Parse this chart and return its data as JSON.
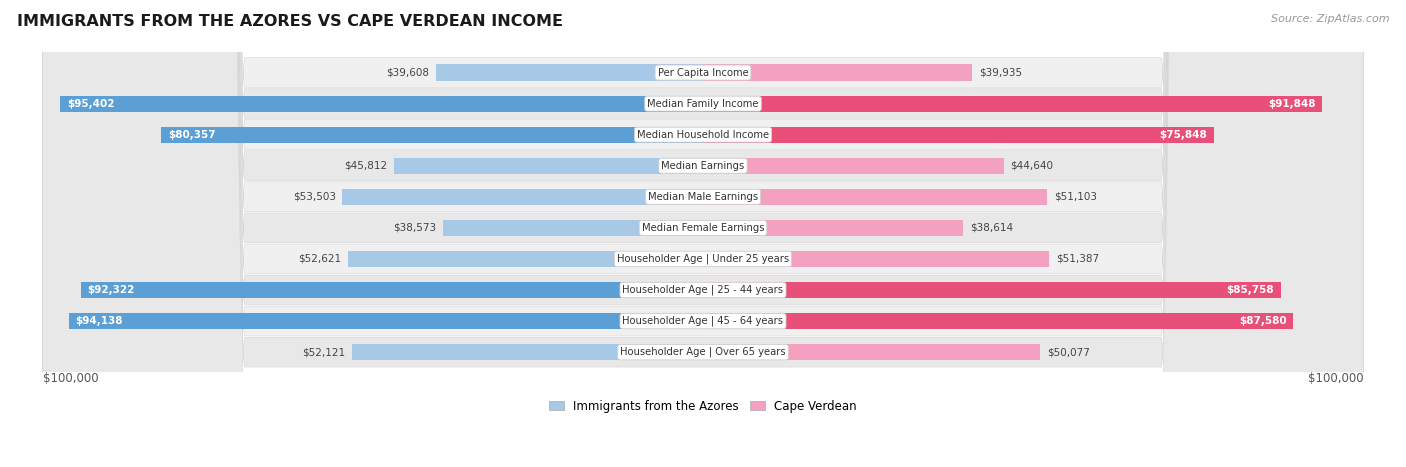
{
  "title": "IMMIGRANTS FROM THE AZORES VS CAPE VERDEAN INCOME",
  "source": "Source: ZipAtlas.com",
  "categories": [
    "Per Capita Income",
    "Median Family Income",
    "Median Household Income",
    "Median Earnings",
    "Median Male Earnings",
    "Median Female Earnings",
    "Householder Age | Under 25 years",
    "Householder Age | 25 - 44 years",
    "Householder Age | 45 - 64 years",
    "Householder Age | Over 65 years"
  ],
  "azores_values": [
    39608,
    95402,
    80357,
    45812,
    53503,
    38573,
    52621,
    92322,
    94138,
    52121
  ],
  "capeverde_values": [
    39935,
    91848,
    75848,
    44640,
    51103,
    38614,
    51387,
    85758,
    87580,
    50077
  ],
  "azores_labels": [
    "$39,608",
    "$95,402",
    "$80,357",
    "$45,812",
    "$53,503",
    "$38,573",
    "$52,621",
    "$92,322",
    "$94,138",
    "$52,121"
  ],
  "capeverde_labels": [
    "$39,935",
    "$91,848",
    "$75,848",
    "$44,640",
    "$51,103",
    "$38,614",
    "$51,387",
    "$85,758",
    "$87,580",
    "$50,077"
  ],
  "max_value": 100000,
  "azores_color_light": "#a8c8e8",
  "azores_color_dark": "#5b9fd4",
  "capeverde_color_light": "#f4a0c0",
  "capeverde_color_dark": "#e8507a",
  "azores_legend": "Immigrants from the Azores",
  "capeverde_legend": "Cape Verdean",
  "row_bg_odd": "#f0f0f0",
  "row_bg_even": "#e8e8e8",
  "bar_height": 0.52,
  "xlabel_left": "$100,000",
  "xlabel_right": "$100,000",
  "azores_threshold": 65000,
  "cv_threshold": 65000
}
